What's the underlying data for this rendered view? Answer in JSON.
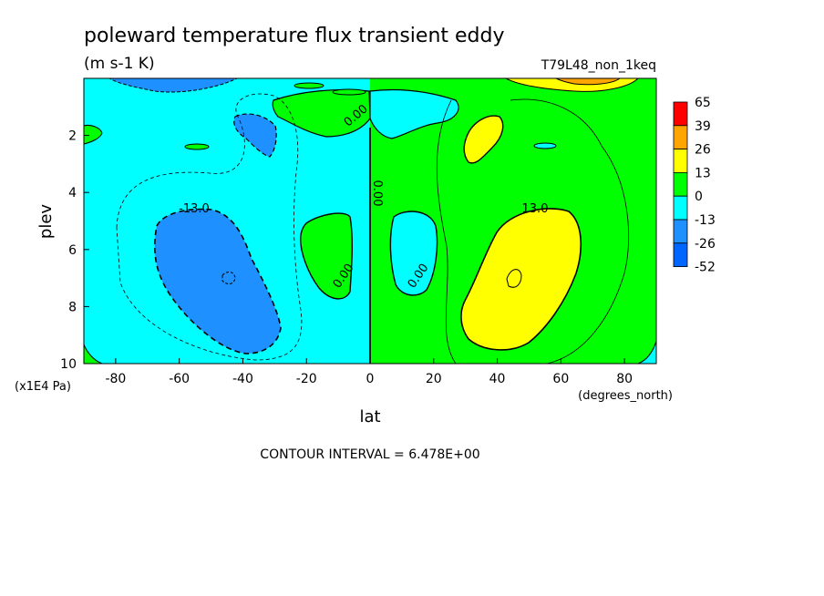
{
  "chart_data": {
    "type": "heatmap",
    "title": "poleward temperature flux transient eddy",
    "units": "(m s-1 K)",
    "run_label": "T79L48_non_1keq",
    "xlabel": "lat",
    "xunits": "(degrees_north)",
    "ylabel": "plev",
    "yunits": "(x1E4 Pa)",
    "xlim": [
      -90,
      90
    ],
    "ylim": [
      10,
      0
    ],
    "x_ticks": [
      -80,
      -60,
      -40,
      -20,
      0,
      20,
      40,
      60,
      80
    ],
    "x_tick_labels": [
      "-80",
      "-60",
      "-40",
      "-20",
      "0",
      "20",
      "40",
      "60",
      "80"
    ],
    "y_ticks": [
      2,
      4,
      6,
      8,
      10
    ],
    "y_tick_labels": [
      "2",
      "4",
      "6",
      "8",
      "10"
    ],
    "colorbar": {
      "levels": [
        "65",
        "39",
        "26",
        "13",
        "0",
        "-13",
        "-26",
        "-52"
      ],
      "colors": [
        "#ff0000",
        "#ffa500",
        "#ffff00",
        "#00ff00",
        "#00ffff",
        "#1e90ff",
        "#0066ff"
      ]
    },
    "contour_labels": [
      "-13.0",
      "0.00",
      "0.00",
      "0.00",
      "0.00",
      "13.0"
    ],
    "footer": "CONTOUR INTERVAL = 6.478E+00"
  },
  "colors": {
    "positive_fill": "#00ff00",
    "negative_fill": "#00ffff",
    "strong_positive_fill": "#ffff00",
    "strong_negative_fill": "#1e90ff",
    "peak_positive_fill": "#ffa500"
  }
}
